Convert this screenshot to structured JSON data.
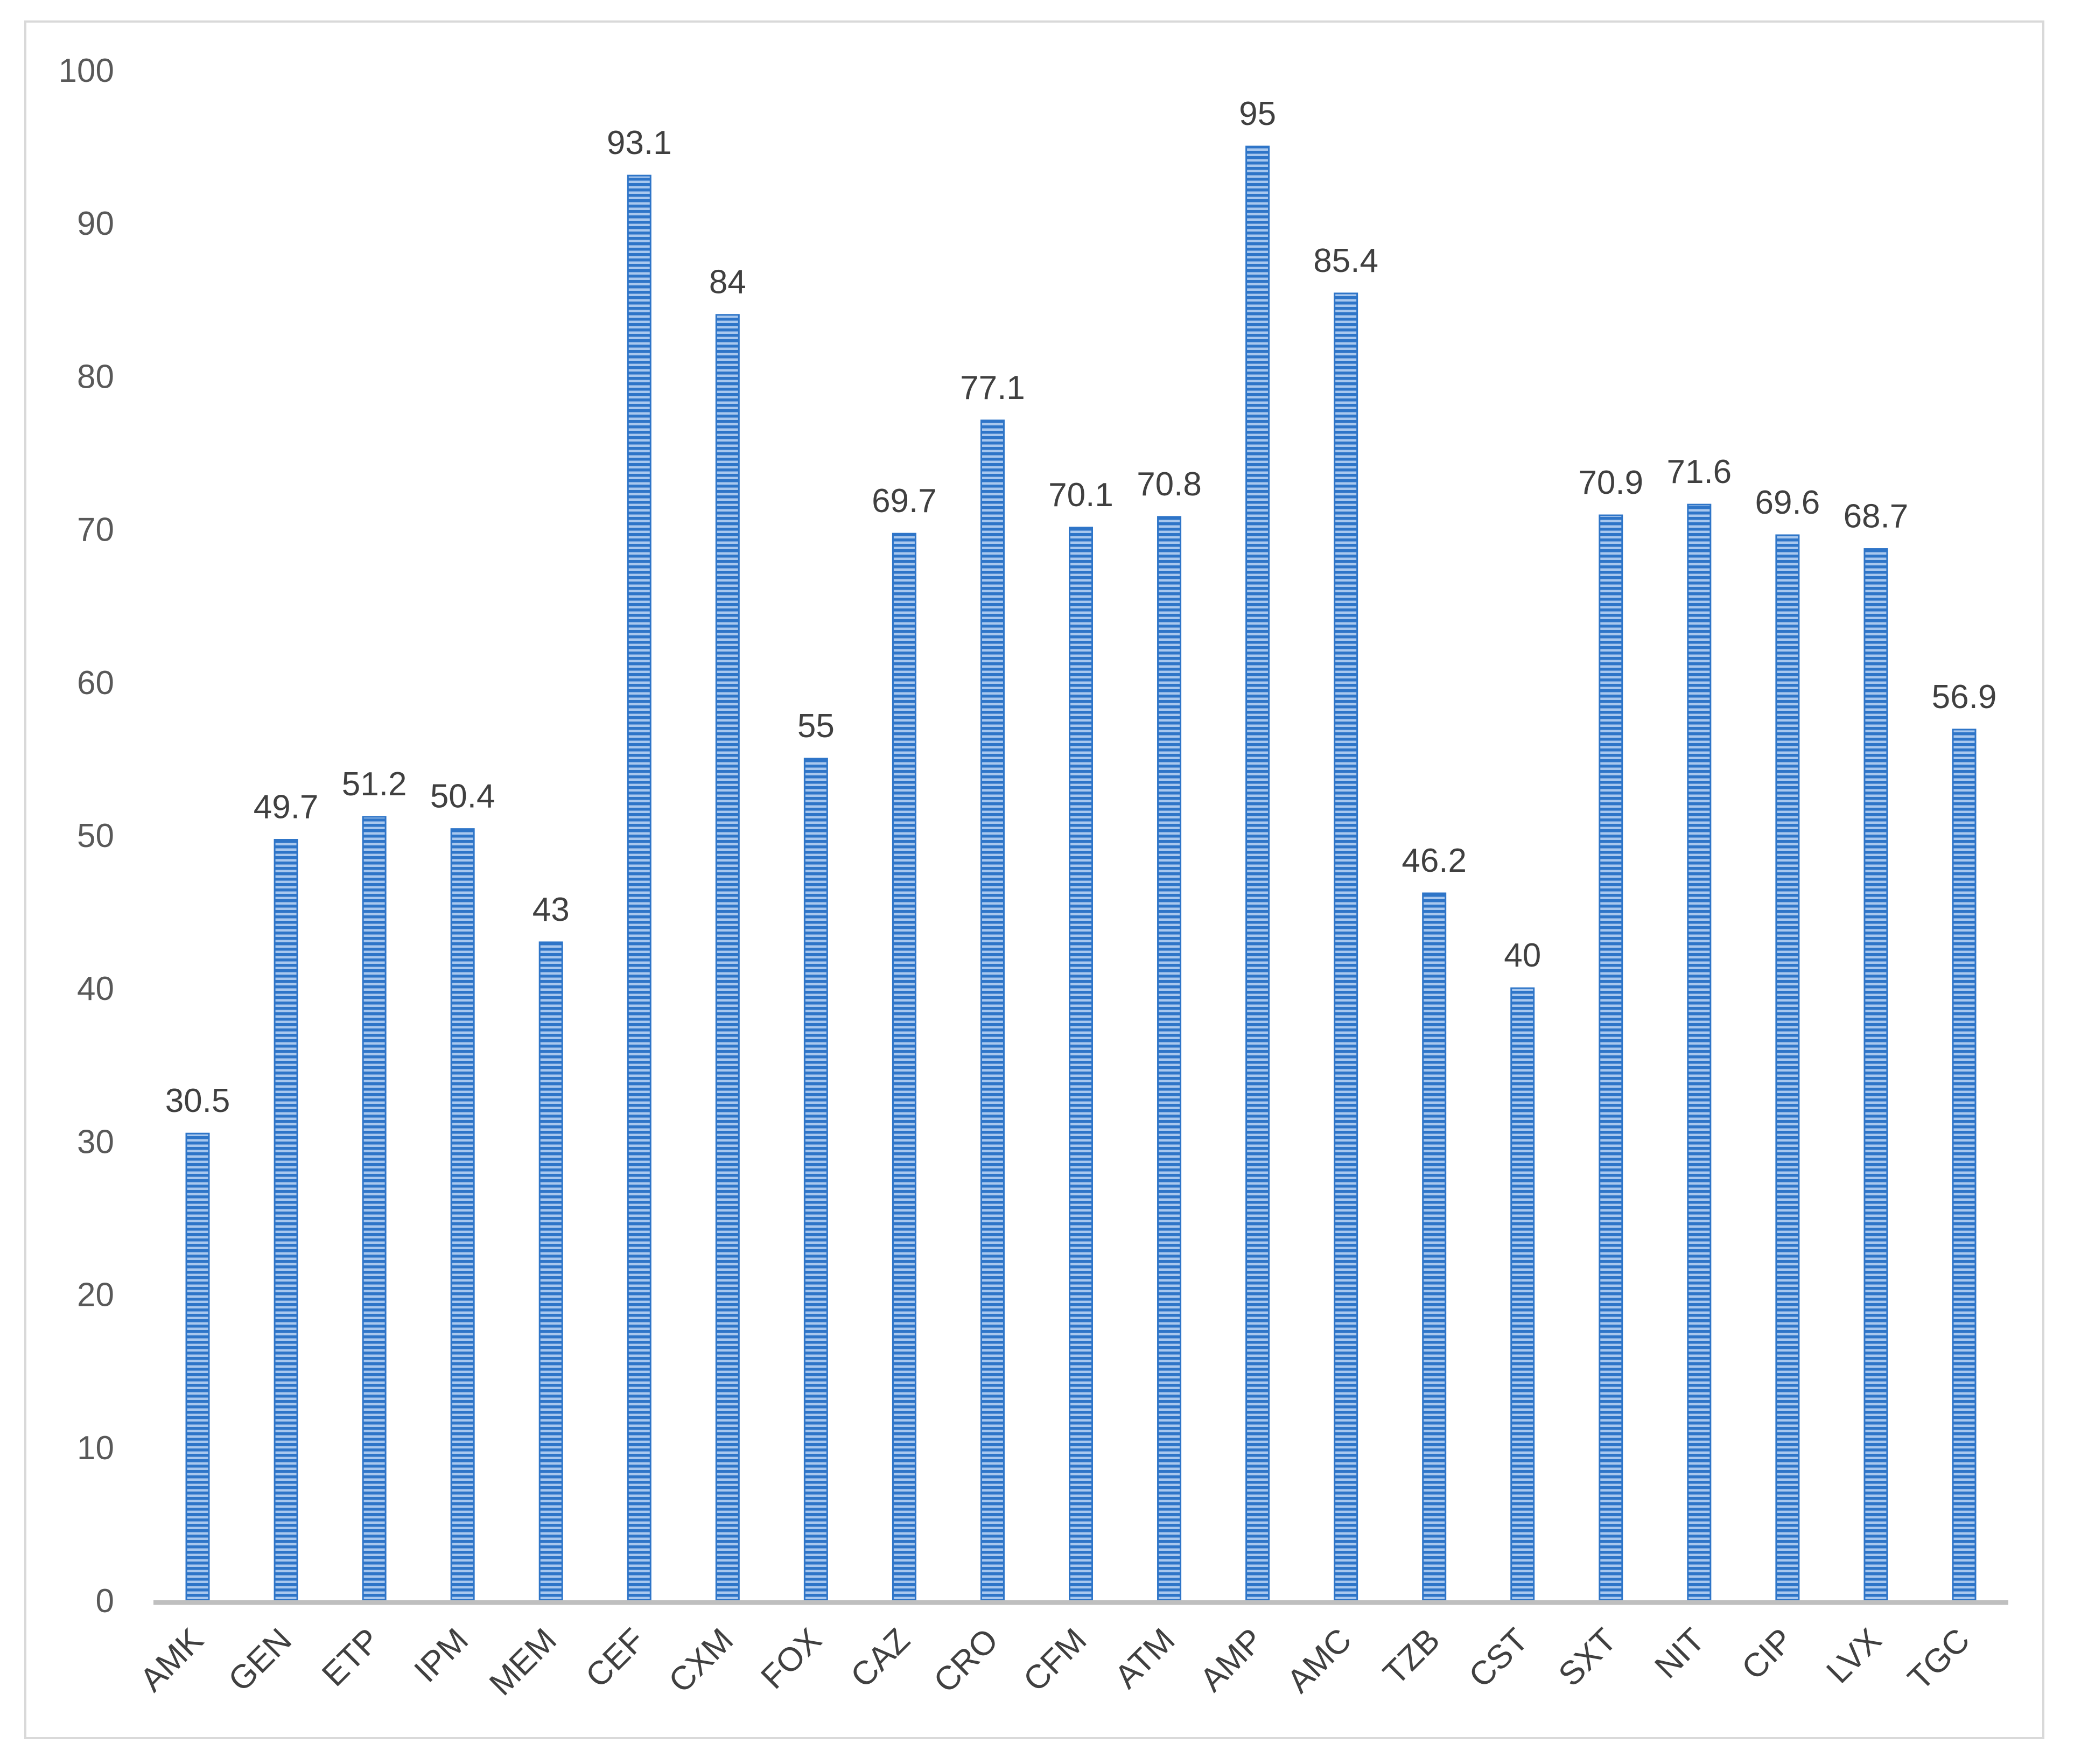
{
  "chart_data": {
    "type": "bar",
    "title": "",
    "xlabel": "",
    "ylabel": "",
    "categories": [
      "AMK",
      "GEN",
      "ETP",
      "IPM",
      "MEM",
      "CEF",
      "CXM",
      "FOX",
      "CAZ",
      "CRO",
      "CFM",
      "ATM",
      "AMP",
      "AMC",
      "TZB",
      "CST",
      "SXT",
      "NIT",
      "CIP",
      "LVX",
      "TGC"
    ],
    "values": [
      30.5,
      49.7,
      51.2,
      50.4,
      43,
      93.1,
      84,
      55,
      69.7,
      77.1,
      70.1,
      70.8,
      95,
      85.4,
      46.2,
      40,
      70.9,
      71.6,
      69.6,
      68.7,
      56.9
    ],
    "value_labels": [
      "30.5",
      "49.7",
      "51.2",
      "50.4",
      "43",
      "93.1",
      "84",
      "55",
      "69.7",
      "77.1",
      "70.1",
      "70.8",
      "95",
      "85.4",
      "46.2",
      "40",
      "70.9",
      "71.6",
      "69.6",
      "68.7",
      "56.9"
    ],
    "yticks": [
      "0",
      "10",
      "20",
      "30",
      "40",
      "50",
      "60",
      "70",
      "80",
      "90",
      "100"
    ],
    "ylim": [
      0,
      100
    ],
    "grid": false,
    "legend": "none",
    "bar_pattern": "horizontal-stripes",
    "colors": {
      "bar_fill": "#2e75c8",
      "bar_stripe": "#a9c8ee",
      "axis_line": "#bfbfbf",
      "frame": "#d9d9d9"
    }
  }
}
